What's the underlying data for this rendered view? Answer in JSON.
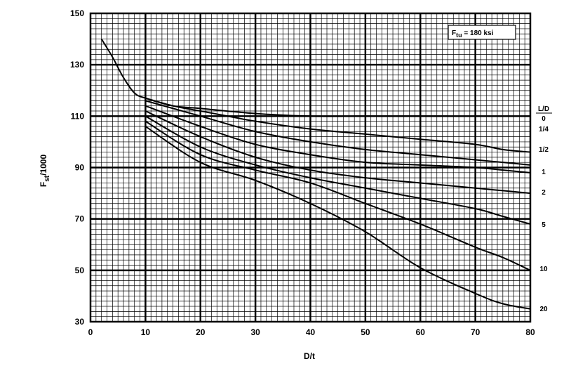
{
  "chart_data": {
    "type": "line",
    "title": "",
    "xlabel": "D/t",
    "ylabel": "F",
    "ylabel_sub": "st",
    "ylabel_suffix": "/1000",
    "xlim": [
      0,
      80
    ],
    "ylim": [
      30,
      150
    ],
    "x_ticks": [
      0,
      10,
      20,
      30,
      40,
      50,
      60,
      70,
      80
    ],
    "y_ticks": [
      30,
      50,
      70,
      90,
      110,
      130,
      150
    ],
    "grid": "fine graph-paper grid with heavy lines every 10 units",
    "annotation": {
      "main": "F",
      "sub": "tu",
      "rest": " = 180 ksi"
    },
    "legend_header": "L/D",
    "series": [
      {
        "name": "0",
        "points": [
          [
            2,
            140
          ],
          [
            4,
            133
          ],
          [
            6,
            125
          ],
          [
            8,
            119
          ],
          [
            10,
            117
          ],
          [
            15,
            114
          ],
          [
            20,
            113
          ],
          [
            30,
            111
          ],
          [
            40,
            110
          ],
          [
            50,
            110
          ],
          [
            60,
            110
          ],
          [
            65,
            110
          ]
        ]
      },
      {
        "name": "1/4",
        "points": [
          [
            10,
            117
          ],
          [
            15,
            114
          ],
          [
            20,
            112
          ],
          [
            25,
            110
          ],
          [
            30,
            108
          ],
          [
            40,
            105
          ],
          [
            50,
            103
          ],
          [
            60,
            101
          ],
          [
            70,
            99
          ],
          [
            75,
            97
          ],
          [
            80,
            96
          ]
        ]
      },
      {
        "name": "1/2",
        "points": [
          [
            10,
            116
          ],
          [
            20,
            110
          ],
          [
            30,
            104
          ],
          [
            40,
            100
          ],
          [
            50,
            97
          ],
          [
            60,
            95
          ],
          [
            70,
            93
          ],
          [
            75,
            92
          ],
          [
            80,
            91
          ]
        ]
      },
      {
        "name": "1",
        "points": [
          [
            10,
            114
          ],
          [
            20,
            106
          ],
          [
            30,
            99
          ],
          [
            40,
            95
          ],
          [
            50,
            92
          ],
          [
            60,
            91
          ],
          [
            70,
            90
          ],
          [
            75,
            89
          ],
          [
            80,
            88
          ]
        ]
      },
      {
        "name": "2",
        "points": [
          [
            10,
            112
          ],
          [
            20,
            102
          ],
          [
            30,
            94
          ],
          [
            40,
            89
          ],
          [
            50,
            86
          ],
          [
            60,
            84
          ],
          [
            70,
            82
          ],
          [
            75,
            81
          ],
          [
            80,
            80
          ]
        ]
      },
      {
        "name": "5",
        "points": [
          [
            10,
            110
          ],
          [
            20,
            98
          ],
          [
            30,
            91
          ],
          [
            40,
            86
          ],
          [
            50,
            82
          ],
          [
            60,
            78
          ],
          [
            70,
            74
          ],
          [
            75,
            71
          ],
          [
            80,
            68
          ]
        ]
      },
      {
        "name": "10",
        "points": [
          [
            10,
            108
          ],
          [
            20,
            95
          ],
          [
            30,
            89
          ],
          [
            40,
            84
          ],
          [
            50,
            76
          ],
          [
            60,
            68
          ],
          [
            70,
            59
          ],
          [
            75,
            55
          ],
          [
            80,
            50
          ]
        ]
      },
      {
        "name": "20",
        "points": [
          [
            10,
            106
          ],
          [
            20,
            92
          ],
          [
            30,
            85
          ],
          [
            40,
            76
          ],
          [
            50,
            65
          ],
          [
            60,
            51
          ],
          [
            70,
            41
          ],
          [
            75,
            37
          ],
          [
            80,
            35
          ]
        ]
      }
    ]
  }
}
